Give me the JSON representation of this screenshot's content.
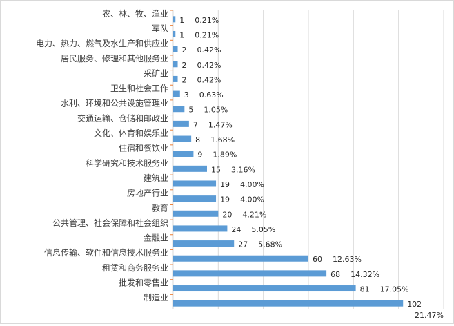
{
  "chart_data": {
    "type": "bar",
    "orientation": "horizontal",
    "categories": [
      "农、林、牧、渔业",
      "军队",
      "电力、热力、燃气及水生产和供应业",
      "居民服务、修理和其他服务业",
      "采矿业",
      "卫生和社会工作",
      "水利、环境和公共设施管理业",
      "交通运输、仓储和邮政业",
      "文化、体育和娱乐业",
      "住宿和餐饮业",
      "科学研究和技术服务业",
      "建筑业",
      "房地产行业",
      "教育",
      "公共管理、社会保障和社会组织",
      "金融业",
      "信息传输、软件和信息技术服务业",
      "租赁和商务服务业",
      "批发和零售业",
      "制造业"
    ],
    "values": [
      1,
      1,
      2,
      2,
      2,
      3,
      5,
      7,
      8,
      9,
      15,
      19,
      19,
      20,
      24,
      27,
      60,
      68,
      81,
      102
    ],
    "percent_labels": [
      "0.21%",
      "0.21%",
      "0.42%",
      "0.42%",
      "0.42%",
      "0.63%",
      "1.05%",
      "1.47%",
      "1.68%",
      "1.89%",
      "3.16%",
      "4.00%",
      "4.00%",
      "4.21%",
      "5.05%",
      "5.68%",
      "12.63%",
      "14.32%",
      "17.05%",
      "21.47%"
    ],
    "xlim": [
      0,
      120
    ],
    "grid": true,
    "bar_color": "#5b9bd5",
    "tick_color": "#ed7d31"
  }
}
